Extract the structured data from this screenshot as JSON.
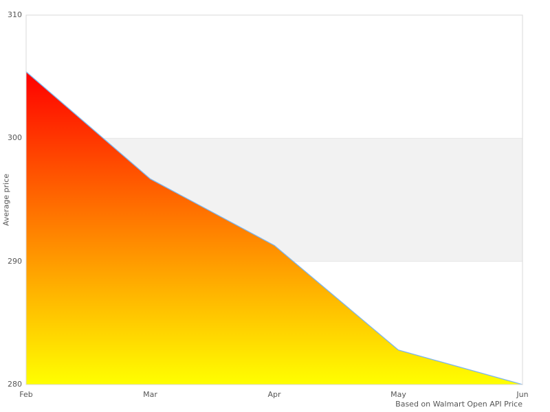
{
  "chart_data": {
    "type": "area",
    "title": "",
    "x": [
      "Feb",
      "Mar",
      "Apr",
      "May",
      "Jun"
    ],
    "series": [
      {
        "name": "Average price",
        "values": [
          305.4,
          296.7,
          291.3,
          282.8,
          280.0
        ]
      }
    ],
    "ylabel": "Average price",
    "xlabel": "",
    "ylim": [
      280,
      310
    ],
    "yticks": [
      280,
      290,
      300,
      310
    ],
    "plot_band": {
      "from": 290,
      "to": 300,
      "color": "#f2f2f2"
    },
    "caption": "Based on Walmart Open API Price",
    "legend": "none",
    "grid": "horizontal",
    "colors": {
      "line": "#7cb5ec",
      "fill_top": "#ff0000",
      "fill_bottom": "#ffff00",
      "band": "#f2f2f2",
      "border": "#d8d8d8",
      "grid": "#e6e6e6",
      "text": "#555555",
      "background": "#ffffff"
    }
  }
}
